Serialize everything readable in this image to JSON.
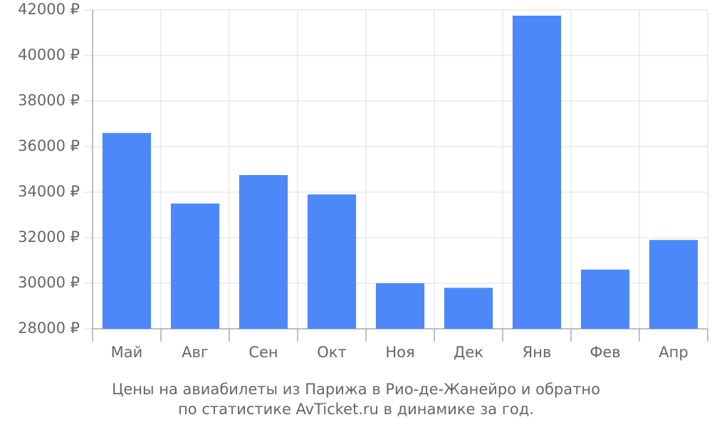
{
  "chart_data": {
    "type": "bar",
    "title": [
      "Цены на авиабилеты из Парижа в Рио-де-Жанейро и обратно",
      "по статистике AvTicket.ru в динамике за год."
    ],
    "categories": [
      "Май",
      "Авг",
      "Сен",
      "Окт",
      "Ноя",
      "Дек",
      "Янв",
      "Фев",
      "Апр"
    ],
    "values": [
      36600,
      33500,
      34750,
      33900,
      30000,
      29800,
      41750,
      30600,
      31900
    ],
    "color": "#4d88f9",
    "ylim": [
      28000,
      42000
    ],
    "yticks": [
      {
        "value": 28000,
        "label": "28000 ₽"
      },
      {
        "value": 30000,
        "label": "30000 ₽"
      },
      {
        "value": 32000,
        "label": "32000 ₽"
      },
      {
        "value": 34000,
        "label": "34000 ₽"
      },
      {
        "value": 36000,
        "label": "36000 ₽"
      },
      {
        "value": 38000,
        "label": "38000 ₽"
      },
      {
        "value": 40000,
        "label": "40000 ₽"
      },
      {
        "value": 42000,
        "label": "42000 ₽"
      }
    ],
    "grid": true
  }
}
